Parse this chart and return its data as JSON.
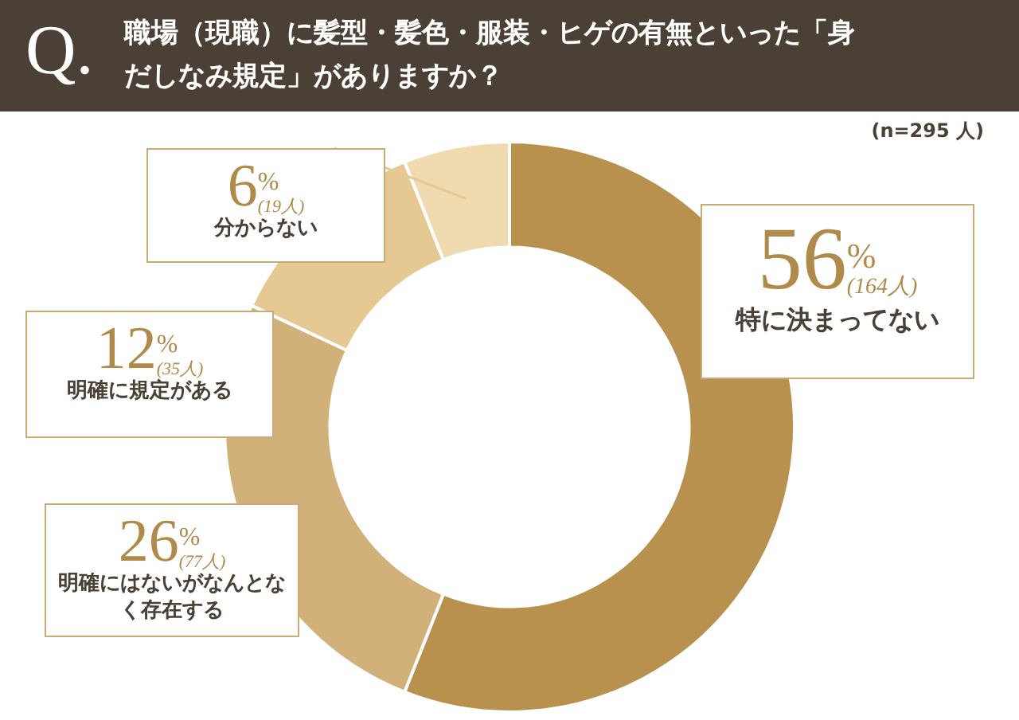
{
  "chart_data": {
    "type": "donut",
    "title": "職場（現職）に髪型・髪色・服装・ヒゲの有無といった「身だしなみ規定」がありますか？",
    "categories": [
      "特に決まってない",
      "明確にはないがなんとなく存在する",
      "明確に規定がある",
      "分からない"
    ],
    "values": [
      56,
      26,
      12,
      6
    ],
    "colors": [
      "#b8914f",
      "#d2b079",
      "#e5c892",
      "#f0dbb0"
    ],
    "value_labels": [
      "56%(164人)",
      "26%(77人)",
      "12%(35人)",
      "6%(19人)"
    ],
    "annotations": [
      "Q.",
      "(n=295 人)"
    ]
  }
}
